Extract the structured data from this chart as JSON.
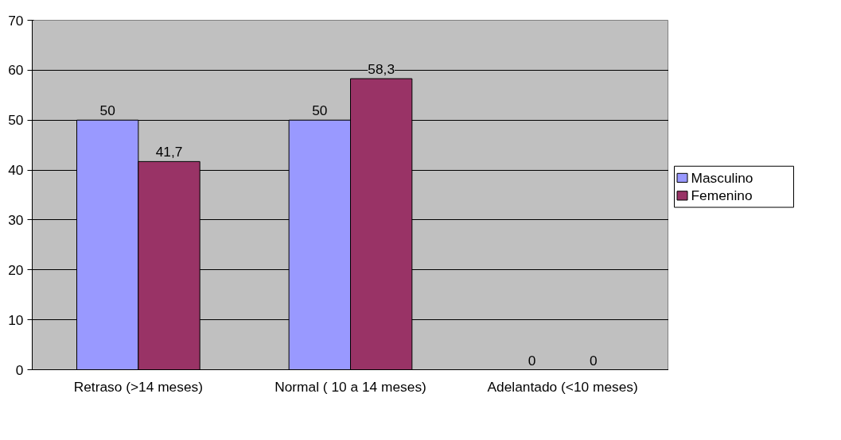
{
  "chart_data": {
    "type": "bar",
    "categories": [
      "Retraso (>14 meses)",
      "Normal ( 10 a 14 meses)",
      "Adelantado (<10 meses)"
    ],
    "series": [
      {
        "name": "Masculino",
        "color": "#9999ff",
        "values": [
          50,
          50,
          0
        ],
        "value_labels": [
          "50",
          "50",
          "0"
        ]
      },
      {
        "name": "Femenino",
        "color": "#993366",
        "values": [
          41.7,
          58.3,
          0
        ],
        "value_labels": [
          "41,7",
          "58,3",
          "0"
        ]
      }
    ],
    "ylim": [
      0,
      70
    ],
    "yticks": [
      0,
      10,
      20,
      30,
      40,
      50,
      60,
      70
    ],
    "grid": "y",
    "legend": "right"
  }
}
